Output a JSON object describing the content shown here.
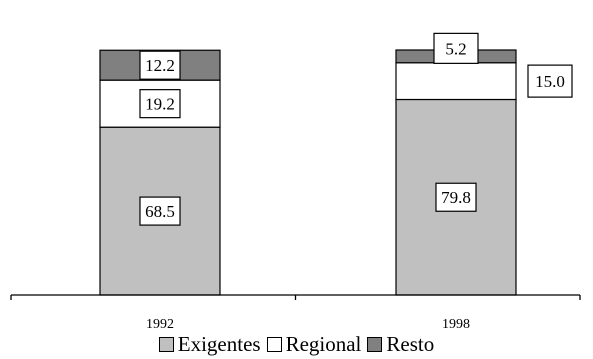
{
  "chart_data": {
    "type": "bar",
    "stacked": true,
    "percent": true,
    "categories": [
      "1992",
      "1998"
    ],
    "series": [
      {
        "name": "Exigentes",
        "values": [
          68.5,
          79.8
        ],
        "color": "#c0c0c0"
      },
      {
        "name": "Regional",
        "values": [
          19.2,
          15.0
        ],
        "color": "#ffffff"
      },
      {
        "name": "Resto",
        "values": [
          12.2,
          5.2
        ],
        "color": "#808080"
      }
    ],
    "data_labels": [
      [
        "68.5",
        "19.2",
        "12.2"
      ],
      [
        "79.8",
        "15.0",
        "5.2"
      ]
    ],
    "title": "",
    "xlabel": "",
    "ylabel": "",
    "ylim": [
      0,
      100
    ],
    "grid": false,
    "legend_position": "bottom"
  }
}
